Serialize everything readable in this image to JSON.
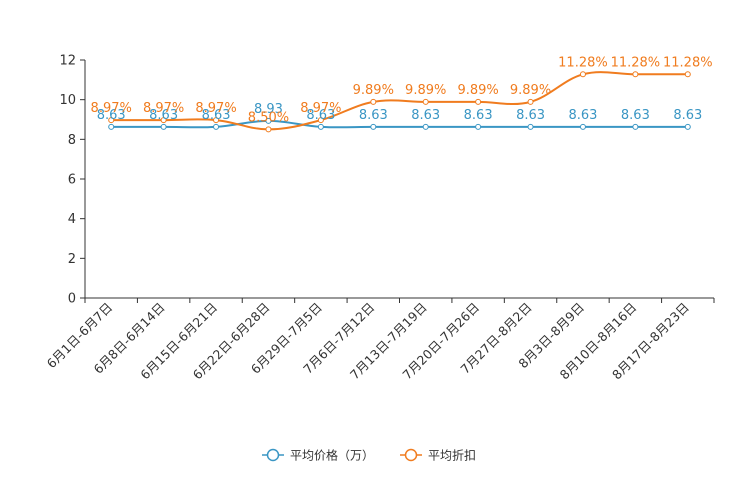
{
  "chart_data": {
    "type": "line",
    "categories": [
      "6月1日-6月7日",
      "6月8日-6月14日",
      "6月15日-6月21日",
      "6月22日-6月28日",
      "6月29日-7月5日",
      "7月6日-7月12日",
      "7月13日-7月19日",
      "7月20日-7月26日",
      "7月27日-8月2日",
      "8月3日-8月9日",
      "8月10日-8月16日",
      "8月17日-8月23日"
    ],
    "series": [
      {
        "name": "平均价格（万）",
        "color": "#3a96c4",
        "values": [
          8.63,
          8.63,
          8.63,
          8.93,
          8.63,
          8.63,
          8.63,
          8.63,
          8.63,
          8.63,
          8.63,
          8.63
        ],
        "labels": [
          "8.63",
          "8.63",
          "8.63",
          "8.93",
          "8.63",
          "8.63",
          "8.63",
          "8.63",
          "8.63",
          "8.63",
          "8.63",
          "8.63"
        ]
      },
      {
        "name": "平均折扣",
        "color": "#f07c1f",
        "values": [
          8.97,
          8.97,
          8.97,
          8.5,
          8.97,
          9.89,
          9.89,
          9.89,
          9.89,
          11.28,
          11.28,
          11.28
        ],
        "labels": [
          "8.97%",
          "8.97%",
          "8.97%",
          "8.50%",
          "8.97%",
          "9.89%",
          "9.89%",
          "9.89%",
          "9.89%",
          "11.28%",
          "11.28%",
          "11.28%"
        ]
      }
    ],
    "yticks": [
      "0",
      "2",
      "4",
      "6",
      "8",
      "10",
      "12"
    ],
    "ylim": [
      0,
      12
    ],
    "title": "",
    "xlabel": "",
    "ylabel": "",
    "legend_position": "bottom-center"
  }
}
